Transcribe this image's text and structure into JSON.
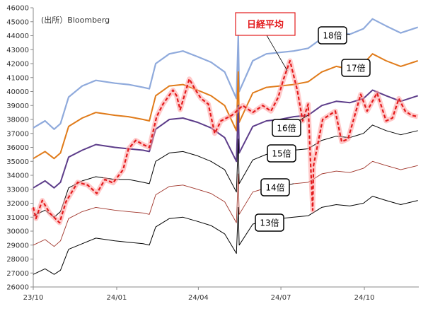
{
  "chart_data": {
    "type": "line",
    "source": "(出所）Bloomberg",
    "x_ticks": [
      "23/10",
      "24/01",
      "24/04",
      "24/07",
      "24/10"
    ],
    "y_ticks": [
      "26000",
      "27000",
      "28000",
      "29000",
      "30000",
      "31000",
      "32000",
      "33000",
      "34000",
      "35000",
      "36000",
      "37000",
      "38000",
      "39000",
      "40000",
      "41000",
      "42000",
      "43000",
      "44000",
      "45000",
      "46000"
    ],
    "ylim": [
      26000,
      46000
    ],
    "x_range": [
      "2023-10-02",
      "2024-11-30"
    ],
    "nikkei": {
      "name": "日経平均",
      "color": "#e31a1c",
      "values": [
        [
          "2023-10-02",
          31700
        ],
        [
          "2023-10-05",
          30900
        ],
        [
          "2023-10-12",
          32200
        ],
        [
          "2023-10-20",
          31300
        ],
        [
          "2023-10-31",
          30600
        ],
        [
          "2023-11-07",
          32100
        ],
        [
          "2023-11-20",
          33500
        ],
        [
          "2023-12-01",
          33300
        ],
        [
          "2023-12-11",
          32700
        ],
        [
          "2023-12-20",
          33700
        ],
        [
          "2023-12-29",
          33460
        ],
        [
          "2024-01-09",
          34400
        ],
        [
          "2024-01-15",
          35900
        ],
        [
          "2024-01-23",
          36500
        ],
        [
          "2024-01-31",
          36200
        ],
        [
          "2024-02-07",
          36000
        ],
        [
          "2024-02-15",
          38200
        ],
        [
          "2024-02-22",
          39100
        ],
        [
          "2024-03-04",
          40100
        ],
        [
          "2024-03-08",
          39700
        ],
        [
          "2024-03-12",
          38700
        ],
        [
          "2024-03-22",
          40900
        ],
        [
          "2024-03-28",
          40200
        ],
        [
          "2024-04-04",
          39500
        ],
        [
          "2024-04-12",
          39100
        ],
        [
          "2024-04-19",
          37000
        ],
        [
          "2024-04-26",
          37900
        ],
        [
          "2024-05-08",
          38300
        ],
        [
          "2024-05-20",
          39000
        ],
        [
          "2024-05-31",
          38500
        ],
        [
          "2024-06-11",
          39000
        ],
        [
          "2024-06-20",
          38600
        ],
        [
          "2024-06-28",
          39580
        ],
        [
          "2024-07-04",
          40900
        ],
        [
          "2024-07-11",
          42200
        ],
        [
          "2024-07-19",
          40100
        ],
        [
          "2024-07-25",
          37900
        ],
        [
          "2024-07-31",
          39100
        ],
        [
          "2024-08-02",
          35900
        ],
        [
          "2024-08-05",
          31500
        ],
        [
          "2024-08-06",
          34700
        ],
        [
          "2024-08-16",
          38000
        ],
        [
          "2024-08-30",
          38600
        ],
        [
          "2024-09-06",
          36400
        ],
        [
          "2024-09-13",
          36600
        ],
        [
          "2024-09-27",
          39800
        ],
        [
          "2024-10-04",
          38600
        ],
        [
          "2024-10-15",
          39900
        ],
        [
          "2024-10-25",
          37900
        ],
        [
          "2024-11-01",
          38100
        ],
        [
          "2024-11-08",
          39500
        ],
        [
          "2024-11-15",
          38600
        ],
        [
          "2024-11-22",
          38300
        ],
        [
          "2024-11-29",
          38200
        ]
      ]
    },
    "series": [
      {
        "name": "18倍",
        "color": "#8faadc",
        "width": 2.2,
        "values": [
          [
            "2023-10-02",
            37400
          ],
          [
            "2023-10-15",
            37900
          ],
          [
            "2023-10-25",
            37300
          ],
          [
            "2023-11-01",
            37700
          ],
          [
            "2023-11-10",
            39600
          ],
          [
            "2023-11-25",
            40400
          ],
          [
            "2023-12-10",
            40800
          ],
          [
            "2023-12-31",
            40600
          ],
          [
            "2024-01-15",
            40500
          ],
          [
            "2024-01-31",
            40300
          ],
          [
            "2024-02-07",
            40200
          ],
          [
            "2024-02-14",
            42000
          ],
          [
            "2024-02-29",
            42700
          ],
          [
            "2024-03-15",
            42900
          ],
          [
            "2024-03-31",
            42500
          ],
          [
            "2024-04-15",
            42100
          ],
          [
            "2024-04-30",
            41400
          ],
          [
            "2024-05-13",
            39500
          ],
          [
            "2024-05-15",
            44000
          ],
          [
            "2024-05-16",
            40000
          ],
          [
            "2024-05-31",
            42200
          ],
          [
            "2024-06-15",
            42700
          ],
          [
            "2024-06-30",
            42800
          ],
          [
            "2024-07-15",
            42900
          ],
          [
            "2024-07-31",
            43100
          ],
          [
            "2024-08-15",
            43800
          ],
          [
            "2024-08-31",
            44300
          ],
          [
            "2024-09-15",
            44100
          ],
          [
            "2024-09-30",
            44500
          ],
          [
            "2024-10-10",
            45200
          ],
          [
            "2024-10-25",
            44700
          ],
          [
            "2024-11-10",
            44200
          ],
          [
            "2024-11-29",
            44600
          ]
        ]
      },
      {
        "name": "17倍",
        "color": "#e07b1a",
        "width": 2.0,
        "values": [
          [
            "2023-10-02",
            35200
          ],
          [
            "2023-10-15",
            35700
          ],
          [
            "2023-10-25",
            35200
          ],
          [
            "2023-11-01",
            35600
          ],
          [
            "2023-11-10",
            37500
          ],
          [
            "2023-11-25",
            38100
          ],
          [
            "2023-12-10",
            38500
          ],
          [
            "2023-12-31",
            38300
          ],
          [
            "2024-01-15",
            38200
          ],
          [
            "2024-01-31",
            38000
          ],
          [
            "2024-02-07",
            37900
          ],
          [
            "2024-02-14",
            39700
          ],
          [
            "2024-02-29",
            40400
          ],
          [
            "2024-03-15",
            40500
          ],
          [
            "2024-03-31",
            40100
          ],
          [
            "2024-04-15",
            39700
          ],
          [
            "2024-04-30",
            39000
          ],
          [
            "2024-05-13",
            37200
          ],
          [
            "2024-05-15",
            41400
          ],
          [
            "2024-05-16",
            37800
          ],
          [
            "2024-05-31",
            39900
          ],
          [
            "2024-06-15",
            40300
          ],
          [
            "2024-06-30",
            40400
          ],
          [
            "2024-07-15",
            40500
          ],
          [
            "2024-07-31",
            40700
          ],
          [
            "2024-08-15",
            41400
          ],
          [
            "2024-08-31",
            41800
          ],
          [
            "2024-09-15",
            41600
          ],
          [
            "2024-09-30",
            42000
          ],
          [
            "2024-10-10",
            42700
          ],
          [
            "2024-10-25",
            42200
          ],
          [
            "2024-11-10",
            41800
          ],
          [
            "2024-11-29",
            42200
          ]
        ]
      },
      {
        "name": "16倍",
        "color": "#5d3d8a",
        "width": 2.0,
        "values": [
          [
            "2023-10-02",
            33100
          ],
          [
            "2023-10-15",
            33600
          ],
          [
            "2023-10-25",
            33100
          ],
          [
            "2023-11-01",
            33500
          ],
          [
            "2023-11-10",
            35300
          ],
          [
            "2023-11-25",
            35800
          ],
          [
            "2023-12-10",
            36200
          ],
          [
            "2023-12-31",
            36000
          ],
          [
            "2024-01-15",
            35900
          ],
          [
            "2024-01-31",
            35800
          ],
          [
            "2024-02-07",
            35700
          ],
          [
            "2024-02-14",
            37300
          ],
          [
            "2024-02-29",
            38000
          ],
          [
            "2024-03-15",
            38100
          ],
          [
            "2024-03-31",
            37800
          ],
          [
            "2024-04-15",
            37400
          ],
          [
            "2024-04-30",
            36700
          ],
          [
            "2024-05-13",
            35000
          ],
          [
            "2024-05-15",
            39000
          ],
          [
            "2024-05-16",
            35600
          ],
          [
            "2024-05-31",
            37500
          ],
          [
            "2024-06-15",
            37900
          ],
          [
            "2024-06-30",
            38000
          ],
          [
            "2024-07-15",
            38200
          ],
          [
            "2024-07-31",
            38300
          ],
          [
            "2024-08-15",
            39000
          ],
          [
            "2024-08-31",
            39300
          ],
          [
            "2024-09-15",
            39200
          ],
          [
            "2024-09-30",
            39500
          ],
          [
            "2024-10-10",
            40100
          ],
          [
            "2024-10-25",
            39700
          ],
          [
            "2024-11-10",
            39300
          ],
          [
            "2024-11-29",
            39700
          ]
        ]
      },
      {
        "name": "15倍",
        "color": "#000000",
        "width": 1.0,
        "values": [
          [
            "2023-10-02",
            31100
          ],
          [
            "2023-10-15",
            31500
          ],
          [
            "2023-10-25",
            31000
          ],
          [
            "2023-11-01",
            31400
          ],
          [
            "2023-11-10",
            33100
          ],
          [
            "2023-11-25",
            33600
          ],
          [
            "2023-12-10",
            33900
          ],
          [
            "2023-12-31",
            33700
          ],
          [
            "2024-01-15",
            33700
          ],
          [
            "2024-01-31",
            33500
          ],
          [
            "2024-02-07",
            33400
          ],
          [
            "2024-02-14",
            35000
          ],
          [
            "2024-02-29",
            35600
          ],
          [
            "2024-03-15",
            35700
          ],
          [
            "2024-03-31",
            35400
          ],
          [
            "2024-04-15",
            35000
          ],
          [
            "2024-04-30",
            34400
          ],
          [
            "2024-05-13",
            32800
          ],
          [
            "2024-05-15",
            36600
          ],
          [
            "2024-05-16",
            33400
          ],
          [
            "2024-05-31",
            35100
          ],
          [
            "2024-06-15",
            35500
          ],
          [
            "2024-06-30",
            35600
          ],
          [
            "2024-07-15",
            35800
          ],
          [
            "2024-07-31",
            35900
          ],
          [
            "2024-08-15",
            36500
          ],
          [
            "2024-08-31",
            36800
          ],
          [
            "2024-09-15",
            36700
          ],
          [
            "2024-09-30",
            37000
          ],
          [
            "2024-10-10",
            37600
          ],
          [
            "2024-10-25",
            37200
          ],
          [
            "2024-11-10",
            36900
          ],
          [
            "2024-11-29",
            37200
          ]
        ]
      },
      {
        "name": "14倍",
        "color": "#a0342a",
        "width": 0.9,
        "values": [
          [
            "2023-10-02",
            29000
          ],
          [
            "2023-10-15",
            29400
          ],
          [
            "2023-10-25",
            28900
          ],
          [
            "2023-11-01",
            29300
          ],
          [
            "2023-11-10",
            30900
          ],
          [
            "2023-11-25",
            31400
          ],
          [
            "2023-12-10",
            31700
          ],
          [
            "2023-12-31",
            31500
          ],
          [
            "2024-01-15",
            31400
          ],
          [
            "2024-01-31",
            31300
          ],
          [
            "2024-02-07",
            31200
          ],
          [
            "2024-02-14",
            32600
          ],
          [
            "2024-02-29",
            33200
          ],
          [
            "2024-03-15",
            33300
          ],
          [
            "2024-03-31",
            33000
          ],
          [
            "2024-04-15",
            32700
          ],
          [
            "2024-04-30",
            32100
          ],
          [
            "2024-05-13",
            30600
          ],
          [
            "2024-05-15",
            34100
          ],
          [
            "2024-05-16",
            31200
          ],
          [
            "2024-05-31",
            32800
          ],
          [
            "2024-06-15",
            33100
          ],
          [
            "2024-06-30",
            33200
          ],
          [
            "2024-07-15",
            33400
          ],
          [
            "2024-07-31",
            33500
          ],
          [
            "2024-08-15",
            34100
          ],
          [
            "2024-08-31",
            34300
          ],
          [
            "2024-09-15",
            34200
          ],
          [
            "2024-09-30",
            34500
          ],
          [
            "2024-10-10",
            35000
          ],
          [
            "2024-10-25",
            34700
          ],
          [
            "2024-11-10",
            34400
          ],
          [
            "2024-11-29",
            34700
          ]
        ]
      },
      {
        "name": "13倍",
        "color": "#000000",
        "width": 1.0,
        "values": [
          [
            "2023-10-02",
            26900
          ],
          [
            "2023-10-15",
            27300
          ],
          [
            "2023-10-25",
            26900
          ],
          [
            "2023-11-01",
            27200
          ],
          [
            "2023-11-10",
            28700
          ],
          [
            "2023-11-25",
            29100
          ],
          [
            "2023-12-10",
            29500
          ],
          [
            "2023-12-31",
            29300
          ],
          [
            "2024-01-15",
            29200
          ],
          [
            "2024-01-31",
            29100
          ],
          [
            "2024-02-07",
            29000
          ],
          [
            "2024-02-14",
            30300
          ],
          [
            "2024-02-29",
            30900
          ],
          [
            "2024-03-15",
            31000
          ],
          [
            "2024-03-31",
            30700
          ],
          [
            "2024-04-15",
            30400
          ],
          [
            "2024-04-30",
            29800
          ],
          [
            "2024-05-13",
            28400
          ],
          [
            "2024-05-15",
            31700
          ],
          [
            "2024-05-16",
            29000
          ],
          [
            "2024-05-31",
            30500
          ],
          [
            "2024-06-15",
            30800
          ],
          [
            "2024-06-30",
            30900
          ],
          [
            "2024-07-15",
            31000
          ],
          [
            "2024-07-31",
            31100
          ],
          [
            "2024-08-15",
            31700
          ],
          [
            "2024-08-31",
            31900
          ],
          [
            "2024-09-15",
            31800
          ],
          [
            "2024-09-30",
            32000
          ],
          [
            "2024-10-10",
            32500
          ],
          [
            "2024-10-25",
            32200
          ],
          [
            "2024-11-10",
            31900
          ],
          [
            "2024-11-29",
            32200
          ]
        ]
      }
    ],
    "grid": false,
    "legend": "inline labels"
  }
}
